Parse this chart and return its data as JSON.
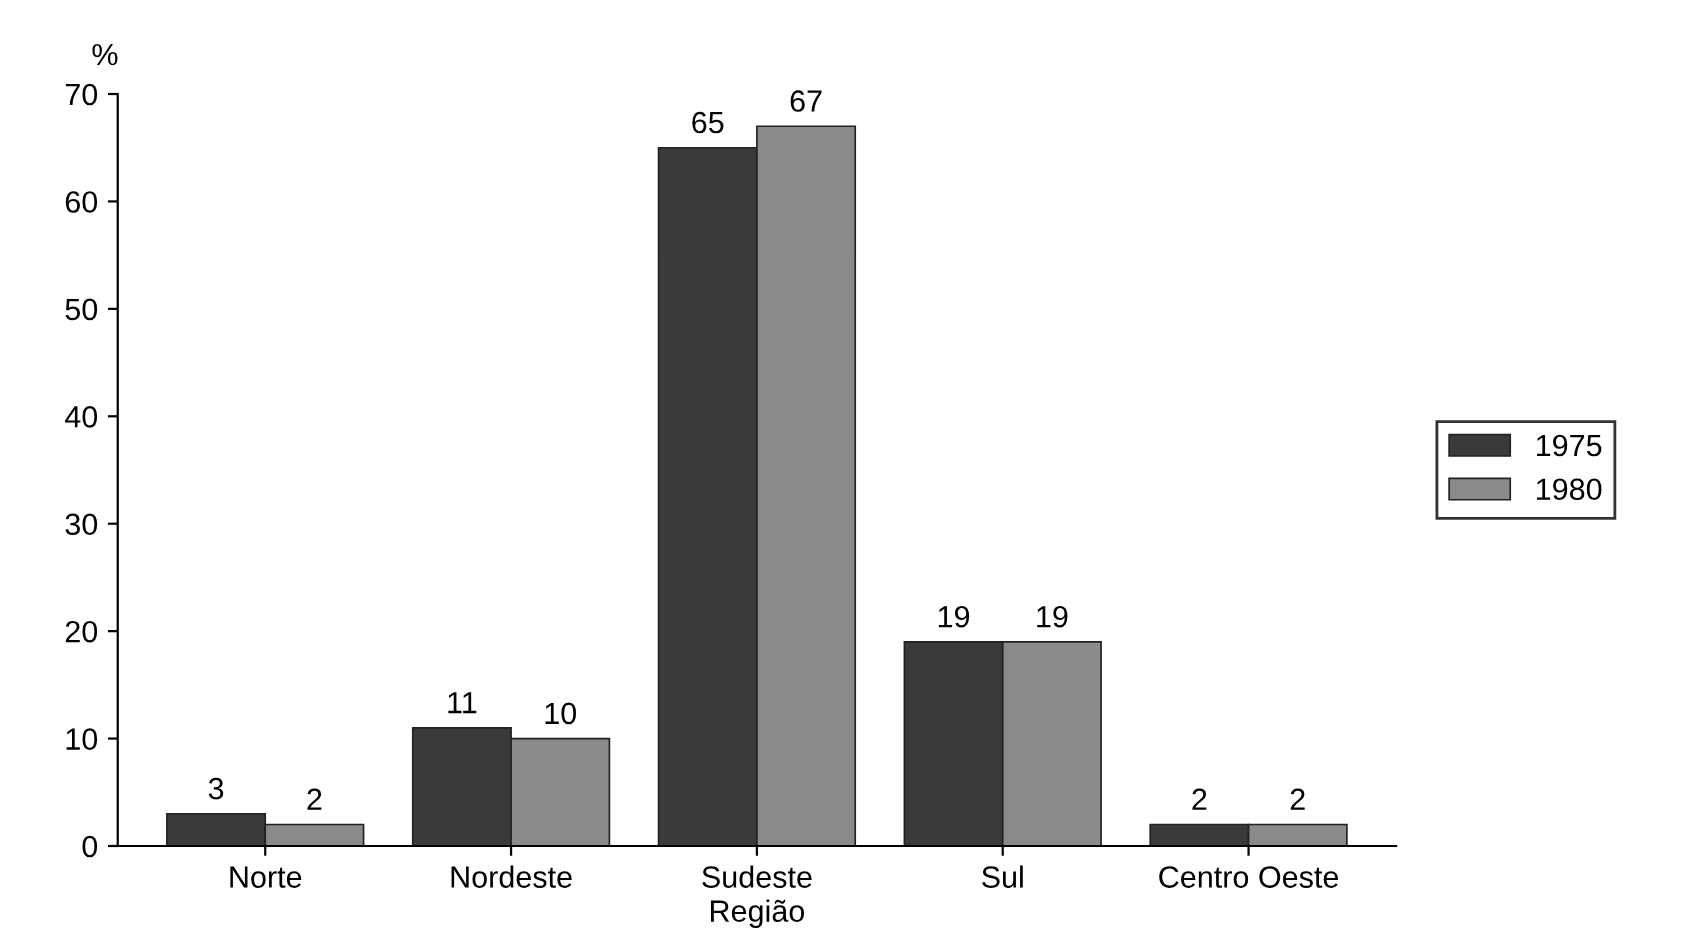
{
  "chart_data": {
    "type": "bar",
    "xlabel": "Região",
    "ylabel": "%",
    "categories": [
      "Norte",
      "Nordeste",
      "Sudeste",
      "Sul",
      "Centro Oeste"
    ],
    "series": [
      {
        "name": "1975",
        "color": "#3a3a3a",
        "values": [
          3,
          11,
          65,
          19,
          2
        ]
      },
      {
        "name": "1980",
        "color": "#8a8a8a",
        "values": [
          2,
          10,
          67,
          19,
          2
        ]
      }
    ],
    "ylim": [
      0,
      70
    ],
    "yticks": [
      0,
      10,
      20,
      30,
      40,
      50,
      60,
      70
    ],
    "data_labels": true,
    "grid": false,
    "legend": "right"
  }
}
